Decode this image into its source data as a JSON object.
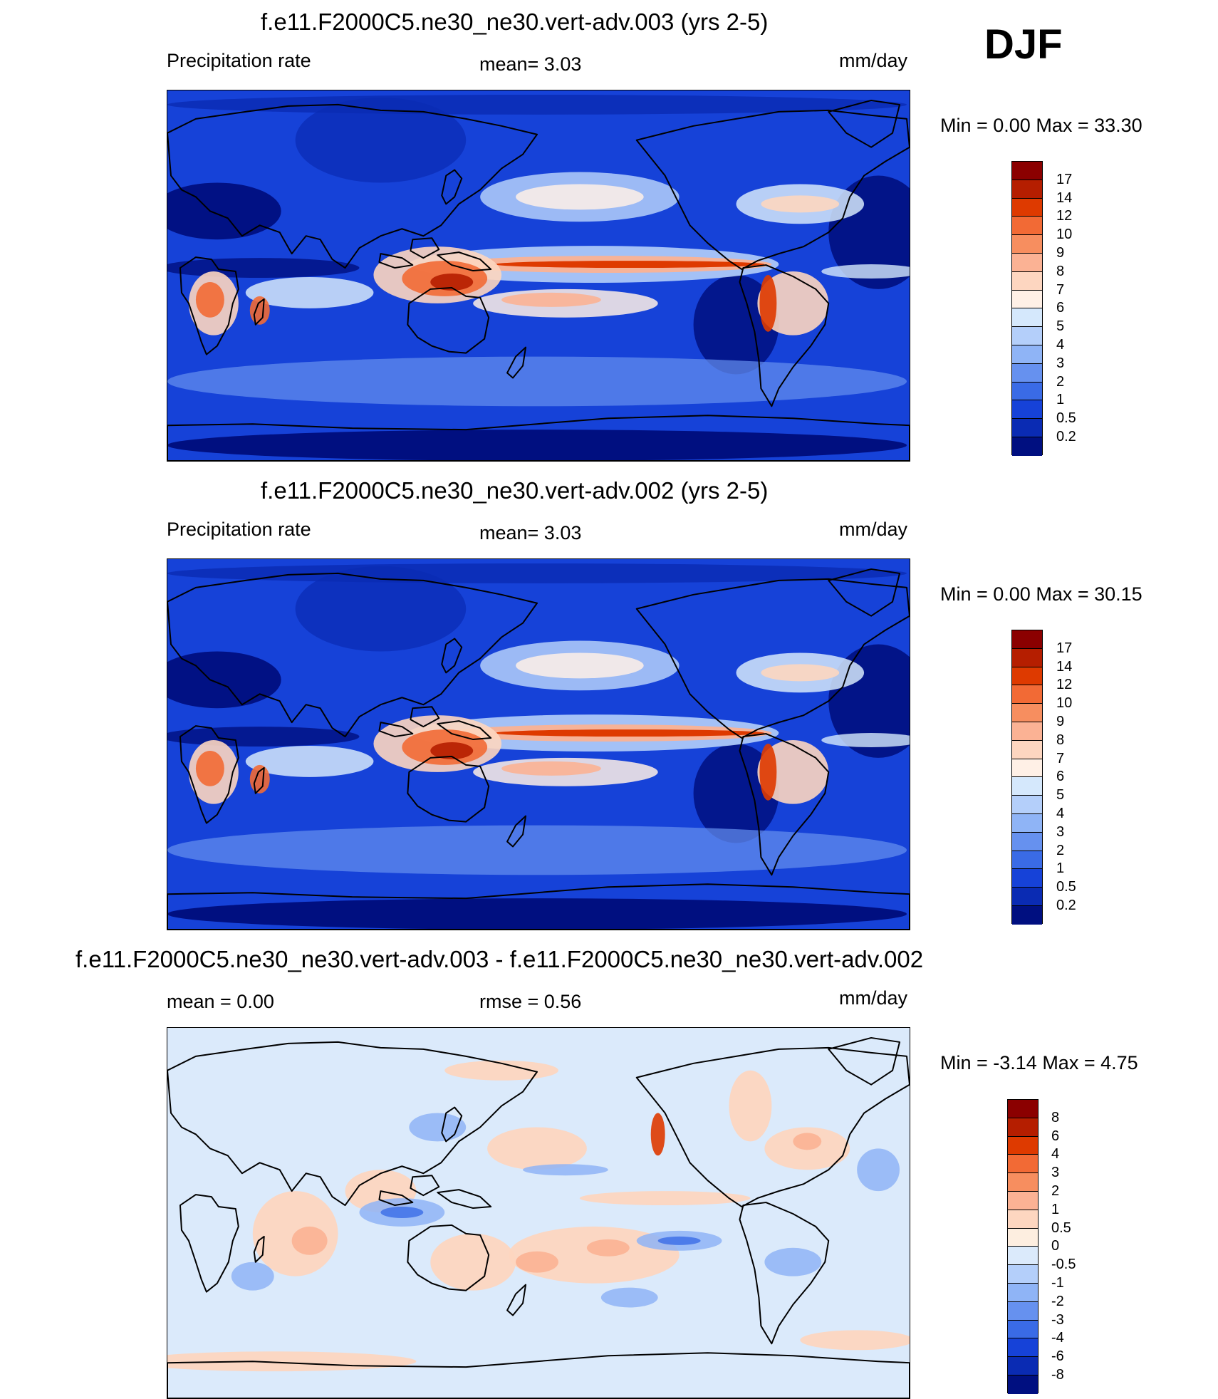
{
  "header": {
    "season": "DJF"
  },
  "panels": [
    {
      "title": "f.e11.F2000C5.ne30_ne30.vert-adv.003 (yrs 2-5)",
      "left_label": "Precipitation rate",
      "center_label": "mean=   3.03",
      "right_label": "mm/day",
      "minmax": "Min =    0.00 Max =  33.30",
      "colorbar": {
        "labels": [
          "17",
          "14",
          "12",
          "10",
          "9",
          "8",
          "7",
          "6",
          "5",
          "4",
          "3",
          "2",
          "1",
          "0.5",
          "0.2"
        ],
        "colors": [
          "#8b0000",
          "#b51e00",
          "#de3a00",
          "#f26a35",
          "#f78e5f",
          "#fbb294",
          "#fdd6c0",
          "#fff0e6",
          "#d5e8fc",
          "#b4cffa",
          "#8fb4f6",
          "#6691ef",
          "#3a6be6",
          "#1642d8",
          "#0a2bb3",
          "#000f80"
        ]
      },
      "map_style": "precip"
    },
    {
      "title": "f.e11.F2000C5.ne30_ne30.vert-adv.002 (yrs 2-5)",
      "left_label": "Precipitation rate",
      "center_label": "mean=   3.03",
      "right_label": "mm/day",
      "minmax": "Min =    0.00 Max =  30.15",
      "colorbar": {
        "labels": [
          "17",
          "14",
          "12",
          "10",
          "9",
          "8",
          "7",
          "6",
          "5",
          "4",
          "3",
          "2",
          "1",
          "0.5",
          "0.2"
        ],
        "colors": [
          "#8b0000",
          "#b51e00",
          "#de3a00",
          "#f26a35",
          "#f78e5f",
          "#fbb294",
          "#fdd6c0",
          "#fff0e6",
          "#d5e8fc",
          "#b4cffa",
          "#8fb4f6",
          "#6691ef",
          "#3a6be6",
          "#1642d8",
          "#0a2bb3",
          "#000f80"
        ]
      },
      "map_style": "precip"
    },
    {
      "title": "f.e11.F2000C5.ne30_ne30.vert-adv.003 - f.e11.F2000C5.ne30_ne30.vert-adv.002",
      "left_label": "mean =    0.00",
      "center_label": "rmse =    0.56",
      "right_label": "mm/day",
      "minmax": "Min =  -3.14 Max =    4.75",
      "colorbar": {
        "labels": [
          "8",
          "6",
          "4",
          "3",
          "2",
          "1",
          "0.5",
          "0",
          "-0.5",
          "-1",
          "-2",
          "-3",
          "-4",
          "-6",
          "-8"
        ],
        "colors": [
          "#8b0000",
          "#b51e00",
          "#de3a00",
          "#f26a35",
          "#f78e5f",
          "#fbb294",
          "#fdd6c0",
          "#fdeee0",
          "#dbeafb",
          "#b4cffa",
          "#8fb4f6",
          "#6691ef",
          "#3a6be6",
          "#1642d8",
          "#0a2bb3",
          "#000f80"
        ]
      },
      "map_style": "diff"
    }
  ]
}
